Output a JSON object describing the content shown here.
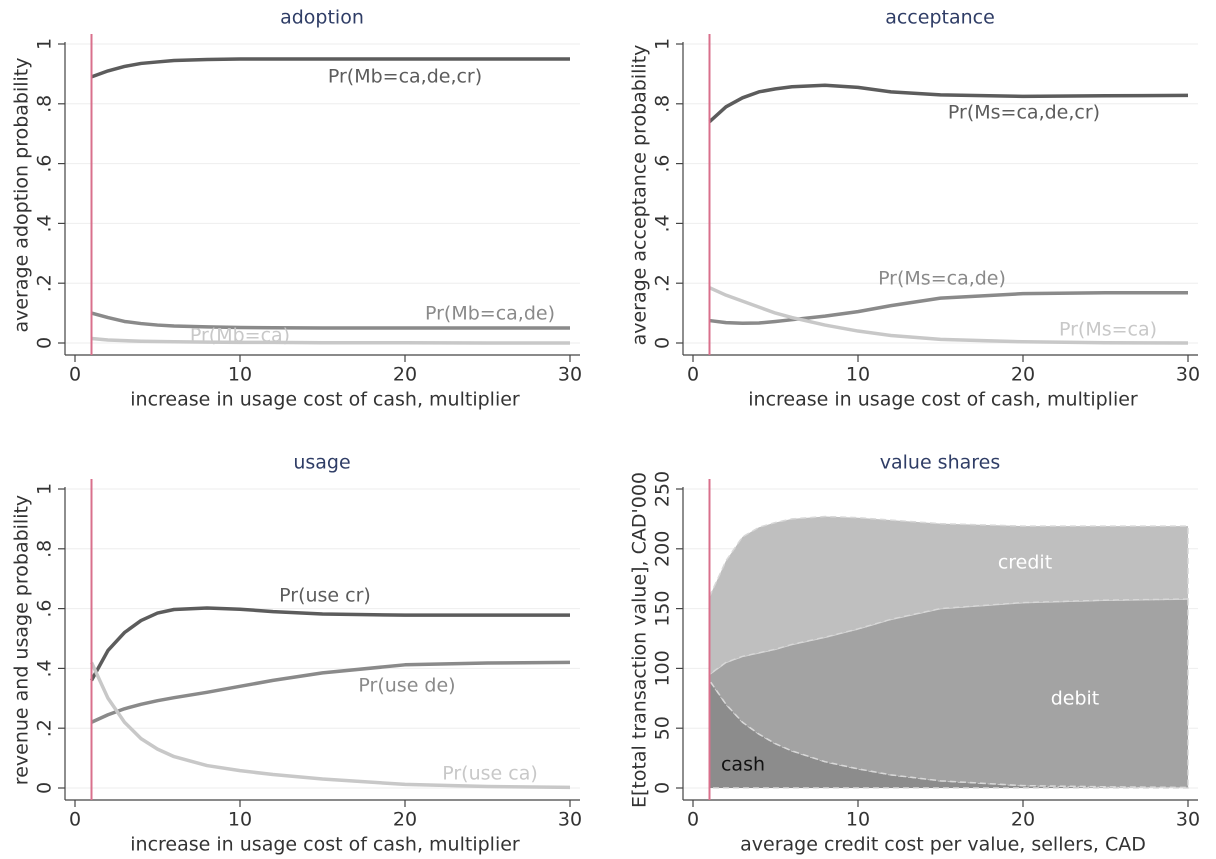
{
  "chart_data": [
    {
      "type": "line",
      "title": "adoption",
      "x_label": "increase in usage cost of cash, multiplier",
      "y_label": "average adoption probability",
      "x": [
        1,
        2,
        3,
        4,
        5,
        6,
        8,
        10,
        12,
        15,
        20,
        25,
        30
      ],
      "series": [
        {
          "name": "Pr(Mb=ca,de,cr)",
          "color": "#5c5c5c",
          "values": [
            0.89,
            0.91,
            0.925,
            0.935,
            0.94,
            0.945,
            0.948,
            0.95,
            0.95,
            0.95,
            0.95,
            0.95,
            0.95
          ]
        },
        {
          "name": "Pr(Mb=ca,de)",
          "color": "#8a8a8a",
          "values": [
            0.1,
            0.085,
            0.072,
            0.065,
            0.06,
            0.057,
            0.054,
            0.052,
            0.051,
            0.05,
            0.05,
            0.05,
            0.05
          ]
        },
        {
          "name": "Pr(Mb=ca)",
          "color": "#c8c8c8",
          "values": [
            0.015,
            0.01,
            0.008,
            0.006,
            0.005,
            0.004,
            0.003,
            0.002,
            0.002,
            0.001,
            0.001,
            0,
            0
          ]
        }
      ],
      "xlim": [
        0,
        30
      ],
      "xticks": [
        0,
        10,
        20,
        30
      ],
      "ylim": [
        0,
        1
      ],
      "yticks": [
        0,
        {
          "value": 0.2,
          "label": ".2"
        },
        {
          "value": 0.4,
          "label": ".4"
        },
        {
          "value": 0.6,
          "label": ".6"
        },
        {
          "value": 0.8,
          "label": ".8"
        },
        1
      ],
      "grid": true,
      "vline": 1,
      "vline_color": "#d9708c"
    },
    {
      "type": "line",
      "title": "acceptance",
      "x_label": "increase in usage cost of cash, multiplier",
      "y_label": "average acceptance probability",
      "x": [
        1,
        2,
        3,
        4,
        5,
        6,
        8,
        10,
        12,
        15,
        20,
        25,
        30
      ],
      "series": [
        {
          "name": "Pr(Ms=ca,de,cr)",
          "color": "#5c5c5c",
          "values": [
            0.74,
            0.79,
            0.82,
            0.84,
            0.85,
            0.857,
            0.862,
            0.855,
            0.84,
            0.83,
            0.825,
            0.827,
            0.828
          ]
        },
        {
          "name": "Pr(Ms=ca,de)",
          "color": "#8a8a8a",
          "values": [
            0.075,
            0.068,
            0.066,
            0.067,
            0.072,
            0.078,
            0.09,
            0.105,
            0.125,
            0.15,
            0.165,
            0.168,
            0.168
          ]
        },
        {
          "name": "Pr(Ms=ca)",
          "color": "#c8c8c8",
          "values": [
            0.185,
            0.16,
            0.14,
            0.12,
            0.1,
            0.085,
            0.06,
            0.04,
            0.025,
            0.012,
            0.004,
            0.001,
            0
          ]
        }
      ],
      "xlim": [
        0,
        30
      ],
      "xticks": [
        0,
        10,
        20,
        30
      ],
      "ylim": [
        0,
        1
      ],
      "yticks": [
        0,
        {
          "value": 0.2,
          "label": ".2"
        },
        {
          "value": 0.4,
          "label": ".4"
        },
        {
          "value": 0.6,
          "label": ".6"
        },
        {
          "value": 0.8,
          "label": ".8"
        },
        1
      ],
      "grid": true,
      "vline": 1,
      "vline_color": "#d9708c"
    },
    {
      "type": "line",
      "title": "usage",
      "x_label": "increase in usage cost of cash, multiplier",
      "y_label": "revenue and usage probability",
      "x": [
        1,
        2,
        3,
        4,
        5,
        6,
        8,
        10,
        12,
        15,
        20,
        25,
        30
      ],
      "series": [
        {
          "name": "Pr(use cr)",
          "color": "#5c5c5c",
          "values": [
            0.36,
            0.46,
            0.52,
            0.56,
            0.585,
            0.597,
            0.602,
            0.598,
            0.59,
            0.582,
            0.578,
            0.578,
            0.578
          ]
        },
        {
          "name": "Pr(use de)",
          "color": "#8a8a8a",
          "values": [
            0.22,
            0.245,
            0.265,
            0.28,
            0.292,
            0.302,
            0.32,
            0.34,
            0.36,
            0.385,
            0.412,
            0.418,
            0.42
          ]
        },
        {
          "name": "Pr(use ca)",
          "color": "#c8c8c8",
          "values": [
            0.42,
            0.3,
            0.22,
            0.165,
            0.13,
            0.105,
            0.075,
            0.058,
            0.045,
            0.03,
            0.012,
            0.005,
            0.002
          ]
        }
      ],
      "xlim": [
        0,
        30
      ],
      "xticks": [
        0,
        10,
        20,
        30
      ],
      "ylim": [
        0,
        1
      ],
      "yticks": [
        0,
        {
          "value": 0.2,
          "label": ".2"
        },
        {
          "value": 0.4,
          "label": ".4"
        },
        {
          "value": 0.6,
          "label": ".6"
        },
        {
          "value": 0.8,
          "label": ".8"
        },
        1
      ],
      "grid": true,
      "vline": 1,
      "vline_color": "#d9708c"
    },
    {
      "type": "area",
      "title": "value shares",
      "x_label": "average credit cost per value, sellers, CAD",
      "y_label": "E[total transaction value], CAD'000",
      "x": [
        1,
        2,
        3,
        4,
        5,
        6,
        8,
        10,
        12,
        15,
        20,
        25,
        30
      ],
      "series": [
        {
          "name": "cash",
          "color": "#8c8c8c",
          "label_color": "#111111",
          "values": [
            90,
            70,
            55,
            45,
            37,
            31,
            22,
            16,
            11,
            6,
            2,
            1,
            0.5
          ]
        },
        {
          "name": "debit",
          "color": "#a3a3a3",
          "label_color": "#ffffff",
          "values": [
            5,
            35,
            55,
            68,
            79,
            89,
            104,
            117,
            130,
            144,
            153,
            156,
            157.5
          ]
        },
        {
          "name": "credit",
          "color": "#bfbfbf",
          "label_color": "#ffffff",
          "values": [
            65,
            85,
            100,
            105,
            106,
            105,
            101,
            93,
            83,
            71,
            64,
            62,
            61
          ]
        }
      ],
      "xlim": [
        0,
        30
      ],
      "xticks": [
        0,
        10,
        20,
        30
      ],
      "ylim": [
        0,
        250
      ],
      "yticks": [
        0,
        50,
        100,
        150,
        200,
        250
      ],
      "grid": true,
      "vline": 1,
      "vline_color": "#d9708c"
    }
  ]
}
